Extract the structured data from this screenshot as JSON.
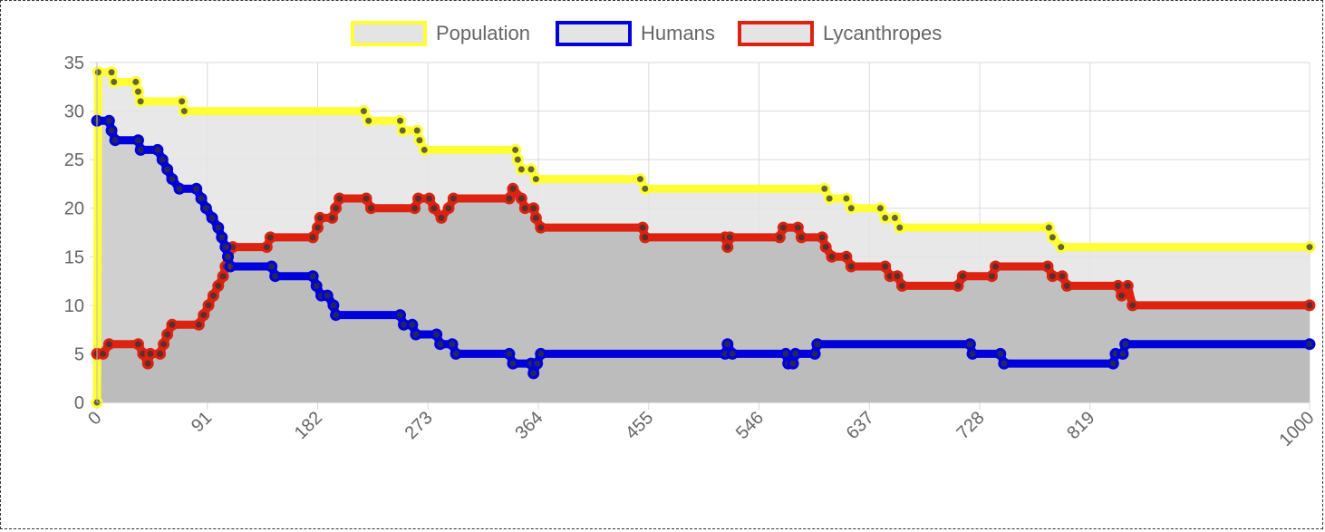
{
  "chart_data": {
    "type": "line",
    "title": "",
    "xlabel": "",
    "ylabel": "",
    "x_ticks": [
      "0",
      "91",
      "182",
      "273",
      "364",
      "455",
      "546",
      "637",
      "728",
      "819",
      "1000"
    ],
    "y_ticks": [
      "0",
      "5",
      "10",
      "15",
      "20",
      "25",
      "30",
      "35"
    ],
    "ylim": [
      0,
      35
    ],
    "xlim": [
      0,
      1000
    ],
    "grid": true,
    "legend_position": "top",
    "series": [
      {
        "name": "Population",
        "color": "#ffff33",
        "fill": "#e4e4e4",
        "points": [
          [
            0,
            0
          ],
          [
            1,
            34
          ],
          [
            12,
            34
          ],
          [
            14,
            33
          ],
          [
            32,
            33
          ],
          [
            34,
            32
          ],
          [
            36,
            31
          ],
          [
            70,
            31
          ],
          [
            72,
            30
          ],
          [
            220,
            30
          ],
          [
            224,
            29
          ],
          [
            250,
            29
          ],
          [
            252,
            28
          ],
          [
            264,
            28
          ],
          [
            266,
            27
          ],
          [
            270,
            26
          ],
          [
            345,
            26
          ],
          [
            347,
            25
          ],
          [
            350,
            24
          ],
          [
            358,
            24
          ],
          [
            362,
            23
          ],
          [
            448,
            23
          ],
          [
            452,
            22
          ],
          [
            600,
            22
          ],
          [
            604,
            21
          ],
          [
            618,
            21
          ],
          [
            622,
            20
          ],
          [
            646,
            20
          ],
          [
            650,
            19
          ],
          [
            658,
            19
          ],
          [
            662,
            18
          ],
          [
            785,
            18
          ],
          [
            788,
            17
          ],
          [
            795,
            16
          ],
          [
            1000,
            16
          ]
        ]
      },
      {
        "name": "Humans",
        "color": "#0000dd",
        "fill": "#cbcbcb",
        "points": [
          [
            0,
            29
          ],
          [
            10,
            29
          ],
          [
            12,
            28
          ],
          [
            15,
            27
          ],
          [
            34,
            27
          ],
          [
            36,
            26
          ],
          [
            50,
            26
          ],
          [
            54,
            25
          ],
          [
            58,
            24
          ],
          [
            62,
            23
          ],
          [
            68,
            22
          ],
          [
            82,
            22
          ],
          [
            86,
            21
          ],
          [
            90,
            20
          ],
          [
            95,
            19
          ],
          [
            100,
            18
          ],
          [
            103,
            17
          ],
          [
            106,
            16
          ],
          [
            108,
            15
          ],
          [
            110,
            14
          ],
          [
            144,
            14
          ],
          [
            147,
            13
          ],
          [
            178,
            13
          ],
          [
            181,
            12
          ],
          [
            185,
            11
          ],
          [
            190,
            11
          ],
          [
            195,
            10
          ],
          [
            197,
            9
          ],
          [
            250,
            9
          ],
          [
            253,
            8
          ],
          [
            260,
            8
          ],
          [
            263,
            7
          ],
          [
            280,
            7
          ],
          [
            283,
            6
          ],
          [
            293,
            6
          ],
          [
            296,
            5
          ],
          [
            340,
            5
          ],
          [
            343,
            4
          ],
          [
            358,
            4
          ],
          [
            360,
            3
          ],
          [
            363,
            4
          ],
          [
            366,
            5
          ],
          [
            518,
            5
          ],
          [
            520,
            6
          ],
          [
            524,
            5
          ],
          [
            568,
            5
          ],
          [
            570,
            4
          ],
          [
            574,
            4
          ],
          [
            576,
            5
          ],
          [
            592,
            5
          ],
          [
            594,
            6
          ],
          [
            720,
            6
          ],
          [
            722,
            5
          ],
          [
            745,
            5
          ],
          [
            748,
            4
          ],
          [
            838,
            4
          ],
          [
            840,
            5
          ],
          [
            846,
            5
          ],
          [
            848,
            6
          ],
          [
            1000,
            6
          ]
        ]
      },
      {
        "name": "Lycanthropes",
        "color": "#dd2211",
        "fill": "#b8b8b8",
        "points": [
          [
            0,
            5
          ],
          [
            5,
            5
          ],
          [
            10,
            6
          ],
          [
            34,
            6
          ],
          [
            38,
            5
          ],
          [
            42,
            4
          ],
          [
            44,
            5
          ],
          [
            52,
            5
          ],
          [
            55,
            6
          ],
          [
            58,
            7
          ],
          [
            62,
            8
          ],
          [
            84,
            8
          ],
          [
            88,
            9
          ],
          [
            92,
            10
          ],
          [
            96,
            11
          ],
          [
            100,
            12
          ],
          [
            104,
            13
          ],
          [
            106,
            14
          ],
          [
            108,
            15
          ],
          [
            112,
            16
          ],
          [
            140,
            16
          ],
          [
            143,
            17
          ],
          [
            178,
            17
          ],
          [
            182,
            18
          ],
          [
            184,
            19
          ],
          [
            194,
            19
          ],
          [
            197,
            20
          ],
          [
            200,
            21
          ],
          [
            222,
            21
          ],
          [
            226,
            20
          ],
          [
            262,
            20
          ],
          [
            265,
            21
          ],
          [
            274,
            21
          ],
          [
            278,
            20
          ],
          [
            284,
            19
          ],
          [
            290,
            20
          ],
          [
            294,
            21
          ],
          [
            340,
            21
          ],
          [
            343,
            22
          ],
          [
            350,
            21
          ],
          [
            353,
            20
          ],
          [
            360,
            20
          ],
          [
            362,
            19
          ],
          [
            366,
            18
          ],
          [
            450,
            18
          ],
          [
            452,
            17
          ],
          [
            518,
            17
          ],
          [
            520,
            16
          ],
          [
            522,
            17
          ],
          [
            563,
            17
          ],
          [
            566,
            18
          ],
          [
            578,
            18
          ],
          [
            581,
            17
          ],
          [
            598,
            17
          ],
          [
            601,
            16
          ],
          [
            606,
            15
          ],
          [
            618,
            15
          ],
          [
            622,
            14
          ],
          [
            650,
            14
          ],
          [
            654,
            13
          ],
          [
            660,
            13
          ],
          [
            664,
            12
          ],
          [
            710,
            12
          ],
          [
            714,
            13
          ],
          [
            738,
            13
          ],
          [
            741,
            14
          ],
          [
            784,
            14
          ],
          [
            788,
            13
          ],
          [
            796,
            13
          ],
          [
            800,
            12
          ],
          [
            842,
            12
          ],
          [
            845,
            11
          ],
          [
            850,
            12
          ],
          [
            854,
            10
          ],
          [
            1000,
            10
          ]
        ]
      }
    ]
  }
}
